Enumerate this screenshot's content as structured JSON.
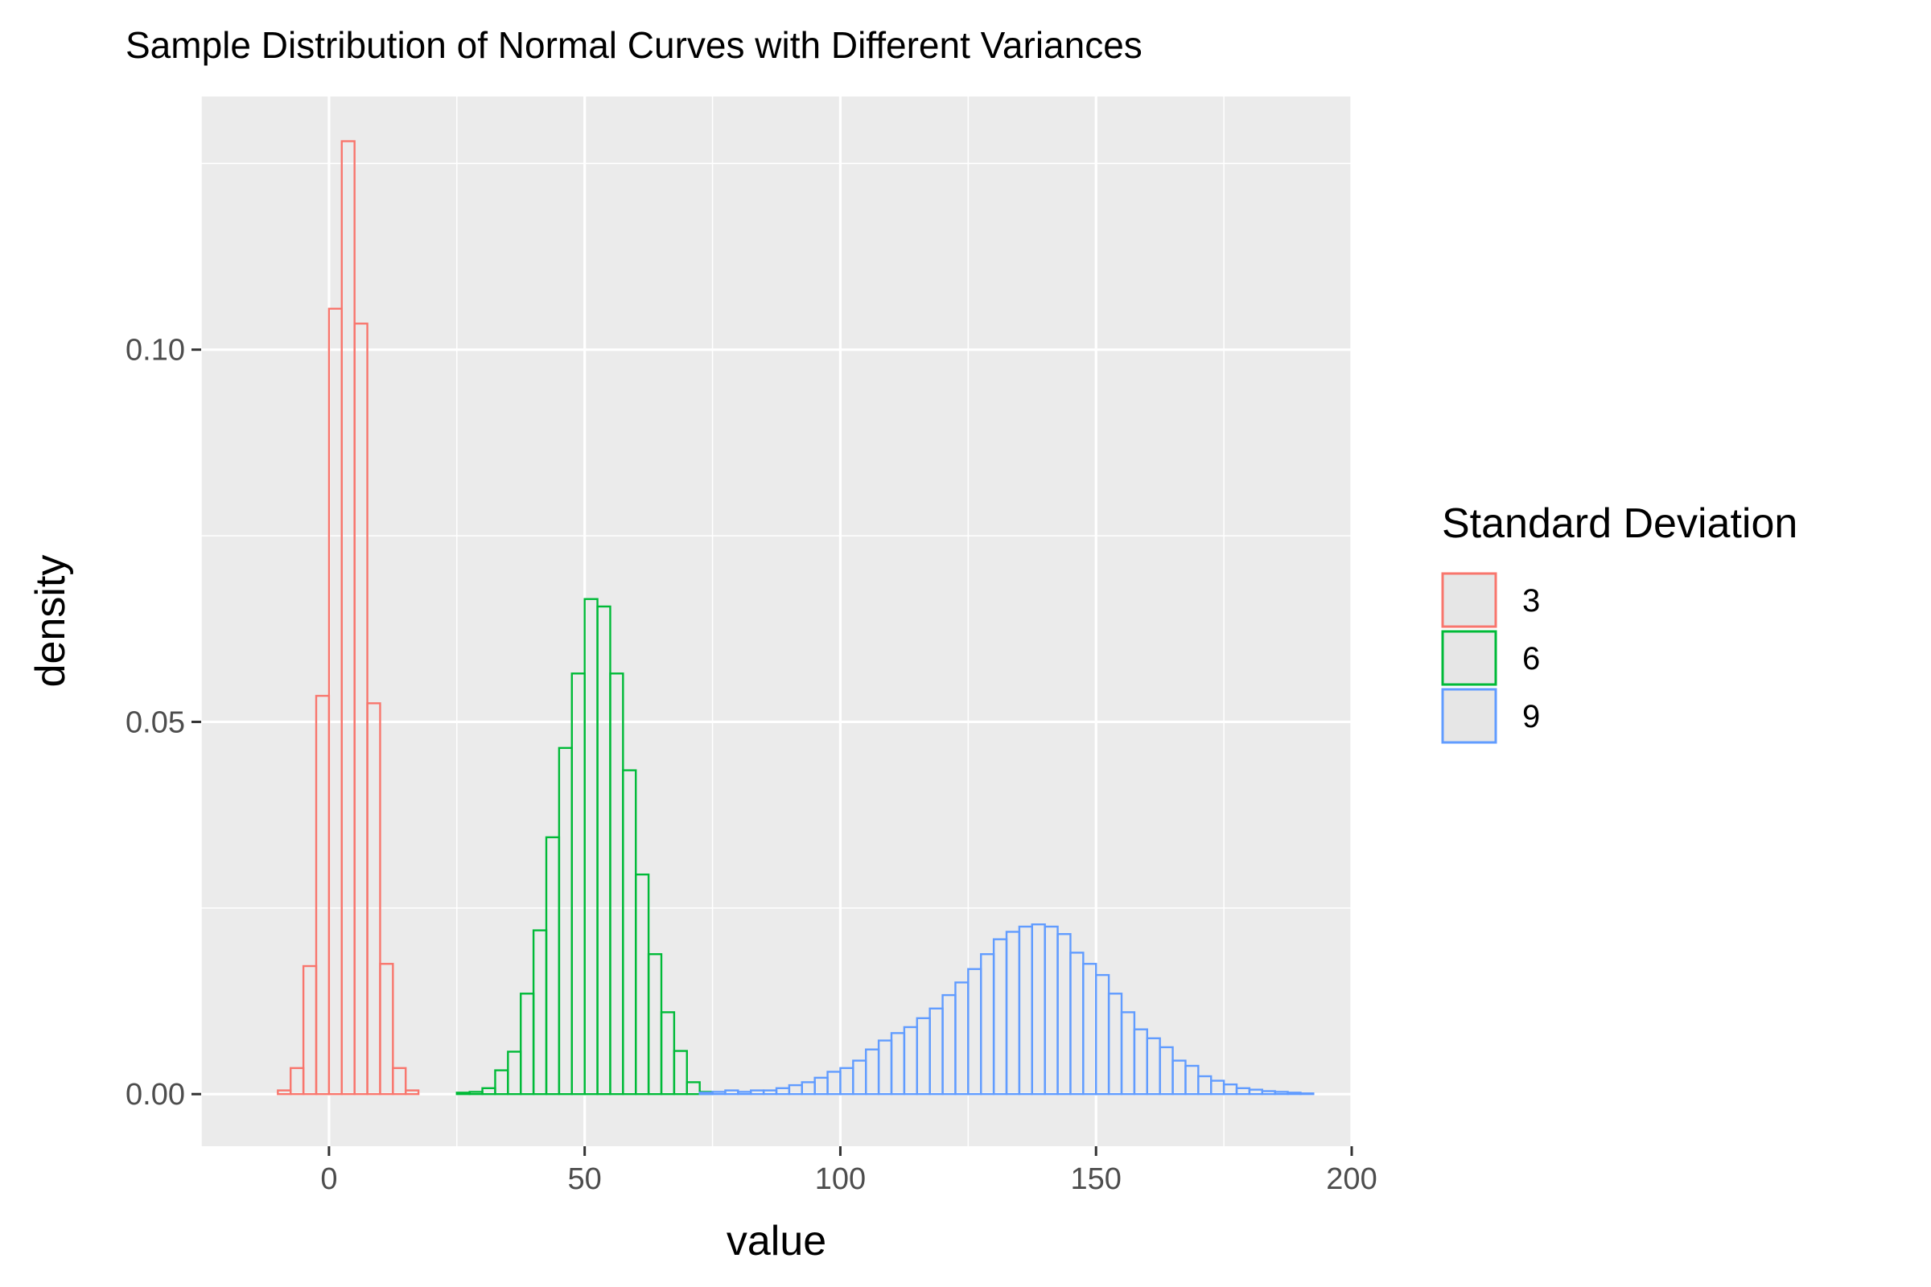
{
  "chart_data": {
    "type": "bar",
    "subtype": "histogram",
    "title": "Sample Distribution of Normal Curves with Different Variances",
    "xlabel": "value",
    "ylabel": "density",
    "xlim": [
      -25,
      200
    ],
    "ylim": [
      -0.007,
      0.134
    ],
    "x_ticks": [
      0,
      50,
      100,
      150,
      200
    ],
    "x_tick_labels": [
      "0",
      "50",
      "100",
      "150",
      "200"
    ],
    "y_ticks": [
      0,
      0.05,
      0.1
    ],
    "y_tick_labels": [
      "0.00",
      "0.05",
      "0.10"
    ],
    "grid": true,
    "legend_position": "right",
    "legend_title": "Standard Deviation",
    "bin_width": 2.5,
    "series": [
      {
        "name": "3",
        "color": "#F8766D",
        "bin_start": -15,
        "values": [
          0,
          0,
          0.0005,
          0.0035,
          0.0172,
          0.0535,
          0.1055,
          0.128,
          0.1035,
          0.0525,
          0.0175,
          0.0035,
          0.0005,
          0,
          0,
          0,
          0,
          0,
          0,
          0,
          0,
          0,
          0,
          0,
          0,
          0,
          0,
          0,
          0,
          0,
          0,
          0,
          0,
          0,
          0,
          0,
          0,
          0,
          0,
          0,
          0,
          0,
          0,
          0,
          0,
          0,
          0,
          0,
          0,
          0,
          0,
          0,
          0,
          0,
          0,
          0,
          0,
          0,
          0,
          0,
          0,
          0,
          0,
          0,
          0,
          0,
          0,
          0,
          0,
          0,
          0,
          0,
          0,
          0,
          0,
          0,
          0,
          0,
          0,
          0,
          0,
          0,
          0
        ]
      },
      {
        "name": "6",
        "color": "#00BA38",
        "bin_start": -15,
        "values": [
          0,
          0,
          0,
          0,
          0,
          0,
          0,
          0,
          0,
          0,
          0,
          0,
          0,
          0,
          0,
          0,
          0.0002,
          0.0003,
          0.0008,
          0.0032,
          0.0057,
          0.0135,
          0.022,
          0.0345,
          0.0465,
          0.0565,
          0.0665,
          0.0655,
          0.0565,
          0.0435,
          0.0295,
          0.0188,
          0.011,
          0.0058,
          0.0016,
          0.0003,
          0,
          0,
          0,
          0,
          0,
          0,
          0,
          0,
          0,
          0,
          0,
          0,
          0,
          0,
          0,
          0,
          0,
          0,
          0,
          0,
          0,
          0,
          0,
          0,
          0,
          0,
          0,
          0,
          0,
          0,
          0,
          0,
          0,
          0,
          0,
          0,
          0,
          0,
          0,
          0,
          0,
          0,
          0,
          0,
          0,
          0,
          0,
          0
        ]
      },
      {
        "name": "9",
        "color": "#619CFF",
        "bin_start": -15,
        "values": [
          0,
          0,
          0,
          0,
          0,
          0,
          0,
          0,
          0,
          0,
          0,
          0,
          0,
          0,
          0,
          0,
          0,
          0,
          0,
          0,
          0,
          0,
          0,
          0,
          0,
          0,
          0,
          0,
          0,
          0,
          0,
          0,
          0,
          0,
          0,
          0.0002,
          0.0003,
          0.0005,
          0.0003,
          0.0005,
          0.0005,
          0.0008,
          0.0012,
          0.0016,
          0.0022,
          0.003,
          0.0035,
          0.0045,
          0.006,
          0.0072,
          0.0082,
          0.009,
          0.0102,
          0.0115,
          0.0133,
          0.015,
          0.0168,
          0.0188,
          0.0208,
          0.0218,
          0.0225,
          0.0228,
          0.0225,
          0.0215,
          0.019,
          0.0175,
          0.016,
          0.0135,
          0.011,
          0.0087,
          0.0075,
          0.0063,
          0.0045,
          0.0038,
          0.0024,
          0.0018,
          0.0013,
          0.0008,
          0.0006,
          0.0004,
          0.0003,
          0.0002,
          0.0001
        ]
      }
    ]
  }
}
